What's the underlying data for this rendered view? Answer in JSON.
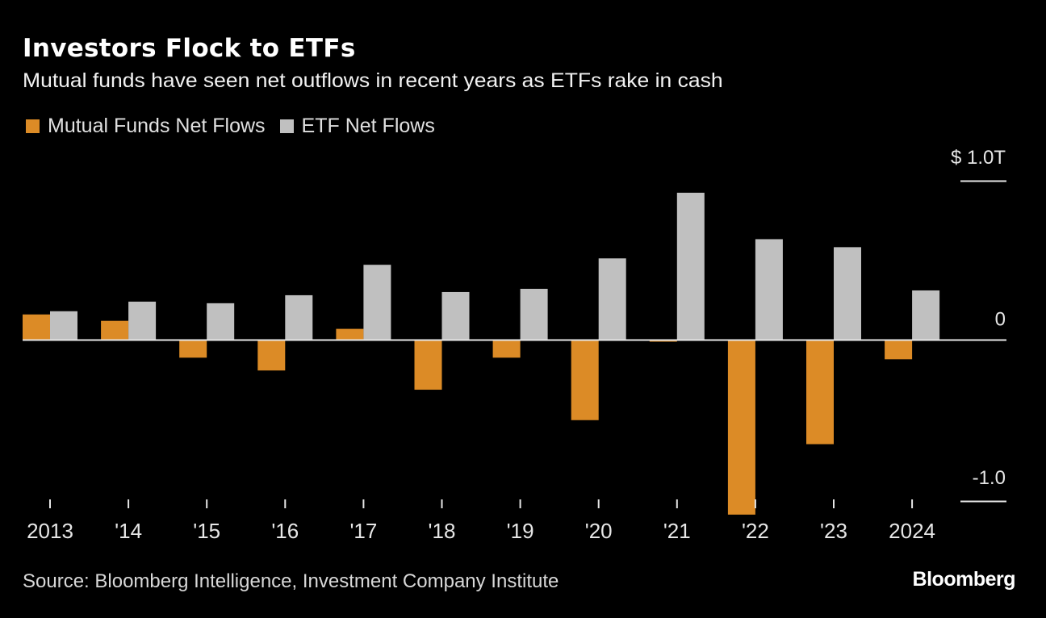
{
  "chart_data": {
    "type": "bar",
    "title": "Investors Flock to ETFs",
    "subtitle": "Mutual funds have seen net outflows in recent years as ETFs rake in cash",
    "categories": [
      "2013",
      "'14",
      "'15",
      "'16",
      "'17",
      "'18",
      "'19",
      "'20",
      "'21",
      "'22",
      "'23",
      "2024"
    ],
    "series": [
      {
        "name": "Mutual Funds Net Flows",
        "color": "#dc8b26",
        "values": [
          0.16,
          0.12,
          -0.11,
          -0.19,
          0.07,
          -0.31,
          -0.11,
          -0.5,
          -0.01,
          -1.09,
          -0.65,
          -0.12
        ]
      },
      {
        "name": "ETF Net Flows",
        "color": "#c0c0c0",
        "values": [
          0.18,
          0.24,
          0.23,
          0.28,
          0.47,
          0.3,
          0.32,
          0.51,
          0.92,
          0.63,
          0.58,
          0.31
        ]
      }
    ],
    "ylim": [
      -1.0,
      1.0
    ],
    "yticks": [
      {
        "value": 1.0,
        "label": "$ 1.0T"
      },
      {
        "value": 0,
        "label": "0"
      },
      {
        "value": -1.0,
        "label": "-1.0"
      }
    ],
    "units": "trillions USD",
    "xlabel": "",
    "ylabel": "",
    "grid": false,
    "legend_position": "top-left",
    "source": "Source: Bloomberg Intelligence, Investment Company Institute",
    "brand": "Bloomberg"
  }
}
